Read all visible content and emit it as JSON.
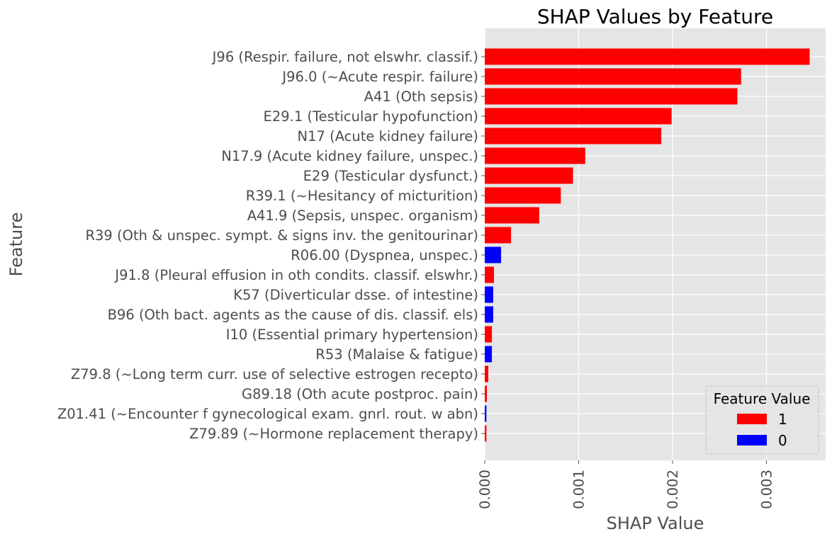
{
  "chart_data": {
    "type": "bar",
    "orientation": "horizontal",
    "title": "SHAP Values by Feature",
    "xlabel": "SHAP Value",
    "ylabel": "Feature",
    "xlim": [
      0,
      0.00363
    ],
    "xticks": [
      0.0,
      0.001,
      0.002,
      0.003
    ],
    "xtick_labels": [
      "0.000",
      "0.001",
      "0.002",
      "0.003"
    ],
    "grid": true,
    "legend": {
      "title": "Feature Value",
      "placement": "bottom-right",
      "entries": [
        {
          "label": "1",
          "color": "#ff0000"
        },
        {
          "label": "0",
          "color": "#0000ff"
        }
      ]
    },
    "categories": [
      "J96 (Respir. failure, not elswhr. classif.)",
      "J96.0 (~Acute respir. failure)",
      "A41 (Oth sepsis)",
      "E29.1 (Testicular hypofunction)",
      "N17 (Acute kidney failure)",
      "N17.9 (Acute kidney failure, unspec.)",
      "E29 (Testicular dysfunct.)",
      "R39.1 (~Hesitancy of micturition)",
      "A41.9 (Sepsis, unspec. organism)",
      "R39 (Oth & unspec. sympt. & signs inv. the genitourinar)",
      "R06.00 (Dyspnea, unspec.)",
      "J91.8 (Pleural effusion in oth condits. classif. elswhr.)",
      "K57 (Diverticular dsse. of intestine)",
      "B96 (Oth bact. agents as the cause of dis. classif. els)",
      "I10 (Essential primary hypertension)",
      "R53 (Malaise & fatigue)",
      "Z79.8 (~Long term curr. use of selective estrogen recepto)",
      "G89.18 (Oth acute postproc. pain)",
      "Z01.41 (~Encounter f gynecological exam. gnrl. rout. w abn)",
      "Z79.89 (~Hormone replacement therapy)"
    ],
    "values": [
      0.00346,
      0.00273,
      0.00269,
      0.00199,
      0.00188,
      0.00107,
      0.00094,
      0.00081,
      0.00058,
      0.00028,
      0.000174,
      9.8e-05,
      9e-05,
      9e-05,
      7.6e-05,
      7.6e-05,
      3.8e-05,
      2.3e-05,
      1.8e-05,
      1.8e-05
    ],
    "feature_values": [
      "1",
      "1",
      "1",
      "1",
      "1",
      "1",
      "1",
      "1",
      "1",
      "1",
      "0",
      "1",
      "0",
      "0",
      "1",
      "0",
      "1",
      "1",
      "0",
      "1"
    ]
  }
}
